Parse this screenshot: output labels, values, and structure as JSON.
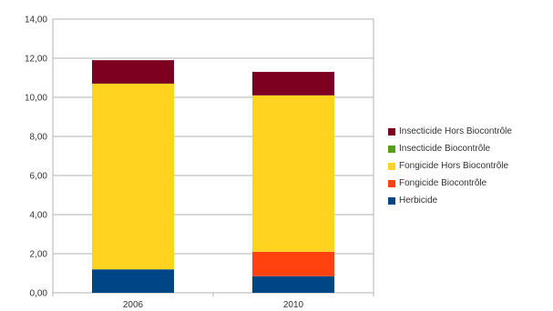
{
  "chart_data": {
    "type": "bar",
    "stacked": true,
    "categories": [
      "2006",
      "2010"
    ],
    "ylim": [
      0,
      14
    ],
    "yticks": [
      "0,00",
      "2,00",
      "4,00",
      "6,00",
      "8,00",
      "10,00",
      "12,00",
      "14,00"
    ],
    "grid": true,
    "legend_position": "right",
    "series": [
      {
        "name": "Herbicide",
        "color": "#004586",
        "values": [
          1.2,
          0.85
        ]
      },
      {
        "name": "Fongicide Biocontrôle",
        "color": "#ff420e",
        "values": [
          0.0,
          1.25
        ]
      },
      {
        "name": "Fongicide Hors Biocontrôle",
        "color": "#ffd320",
        "values": [
          9.5,
          8.0
        ]
      },
      {
        "name": "Insecticide Biocontrôle",
        "color": "#579d1c",
        "values": [
          0.0,
          0.0
        ]
      },
      {
        "name": "Insecticide Hors Biocontrôle",
        "color": "#7e0021",
        "values": [
          1.2,
          1.2
        ]
      }
    ]
  }
}
